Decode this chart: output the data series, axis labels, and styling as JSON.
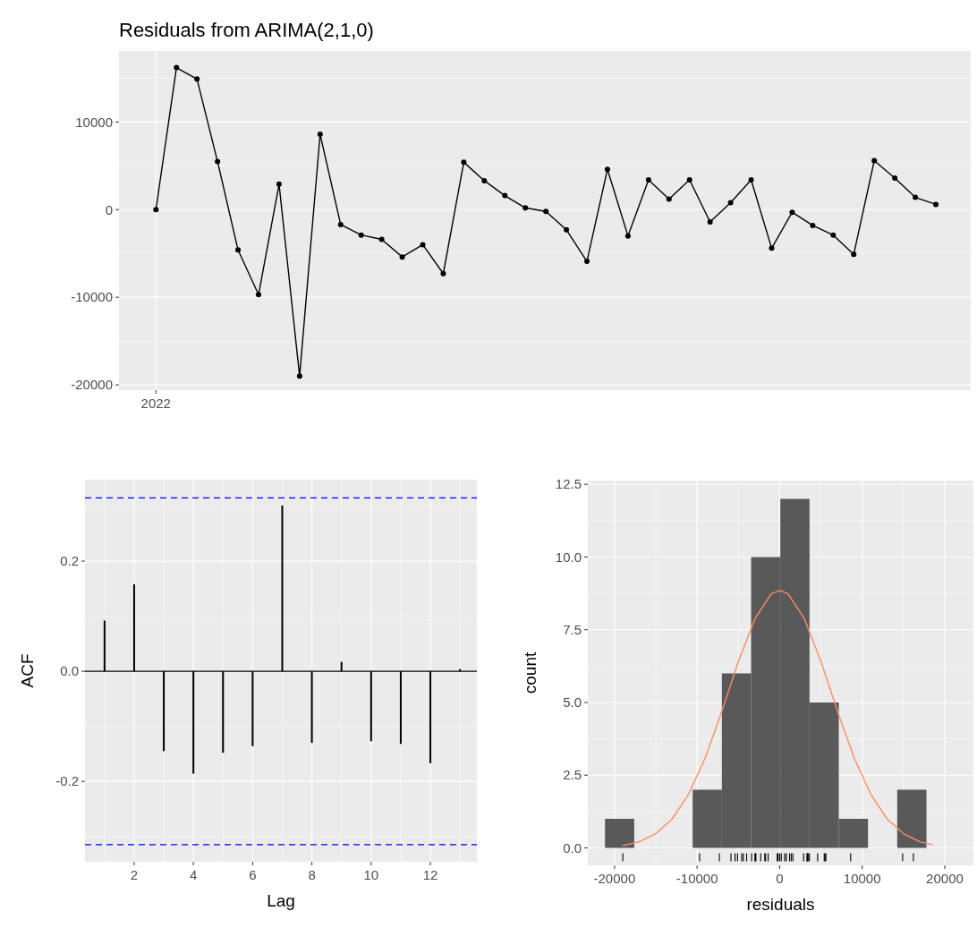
{
  "chart_data": [
    {
      "type": "line",
      "title": "Residuals from ARIMA(2,1,0)",
      "categories": [
        "2022",
        null,
        null,
        null,
        null,
        null,
        null,
        null,
        null,
        null,
        null,
        null,
        null,
        null,
        null,
        null,
        null,
        null,
        null,
        null,
        null,
        null,
        null,
        null,
        null,
        null,
        null,
        null,
        null,
        null,
        null,
        null,
        null,
        null,
        null,
        null,
        null,
        null,
        null
      ],
      "values": [
        0,
        16200,
        14900,
        5500,
        -4600,
        -9700,
        2900,
        -19000,
        8600,
        -1700,
        -2900,
        -3400,
        -5400,
        -4000,
        -7300,
        5400,
        3300,
        1600,
        200,
        -200,
        -2300,
        -5900,
        4600,
        -3000,
        3400,
        1200,
        3400,
        -1400,
        800,
        3400,
        -4400,
        -300,
        -1800,
        -2900,
        -5100,
        5600,
        3600,
        1400,
        600
      ],
      "color": "#000000",
      "ylim": [
        -20600,
        18100
      ],
      "yticks": [
        -20000,
        -10000,
        0,
        10000
      ],
      "grid": true,
      "marker": "circle"
    },
    {
      "type": "bar",
      "xlabel": "Lag",
      "ylabel": "ACF",
      "x": [
        1,
        2,
        3,
        4,
        5,
        6,
        7,
        8,
        9,
        10,
        11,
        12,
        13
      ],
      "values": [
        0.092,
        0.158,
        -0.145,
        -0.186,
        -0.148,
        -0.136,
        0.301,
        -0.13,
        0.017,
        -0.127,
        -0.132,
        -0.167,
        0.004
      ],
      "color": "#000000",
      "xlim": [
        0.34,
        13.57
      ],
      "xticks": [
        2,
        4,
        6,
        8,
        10,
        12
      ],
      "ylim": [
        -0.346,
        0.348
      ],
      "yticks": [
        -0.2,
        {
          "value": 0,
          "label": "0.0"
        },
        0.2
      ],
      "grid": true,
      "ref_lines": [
        {
          "axis": "y",
          "value": 0,
          "color": "#000000",
          "line_style": "solid"
        },
        {
          "axis": "y",
          "value": 0.315,
          "color": "#0000ff",
          "line_style": "dashed"
        },
        {
          "axis": "y",
          "value": -0.315,
          "color": "#0000ff",
          "line_style": "dashed"
        }
      ]
    },
    {
      "type": "histogram",
      "xlabel": "residuals",
      "ylabel": "count",
      "bins": [
        -21160,
        -17620,
        -14080,
        -10540,
        -7000,
        -3460,
        80,
        3620,
        7160,
        10700,
        14240,
        17780
      ],
      "values": [
        1,
        0,
        0,
        2,
        6,
        10,
        12,
        5,
        1,
        0,
        2
      ],
      "color": "#595959",
      "xlim": [
        -23240,
        23470
      ],
      "xticks": [
        -20000,
        -10000,
        0,
        10000,
        20000
      ],
      "ylim": [
        -0.6,
        12.63
      ],
      "yticks": [
        {
          "value": 0,
          "label": "0.0"
        },
        2.5,
        {
          "value": 5,
          "label": "5.0"
        },
        7.5,
        {
          "value": 10,
          "label": "10.0"
        },
        12.5
      ],
      "grid": true,
      "series": [
        {
          "type": "line",
          "color": "#fc8d62",
          "x": [
            -19000,
            -17000,
            -15000,
            -13000,
            -11000,
            -9000,
            -7000,
            -5000,
            -3000,
            -1000,
            0,
            1000,
            3000,
            5000,
            7000,
            9000,
            11000,
            13000,
            15000,
            17000,
            18500
          ],
          "values": [
            0.08,
            0.21,
            0.49,
            1.0,
            1.86,
            3.11,
            4.7,
            6.41,
            7.88,
            8.74,
            8.85,
            8.74,
            7.88,
            6.41,
            4.7,
            3.11,
            1.86,
            1.0,
            0.49,
            0.21,
            0.11
          ]
        }
      ]
    }
  ]
}
